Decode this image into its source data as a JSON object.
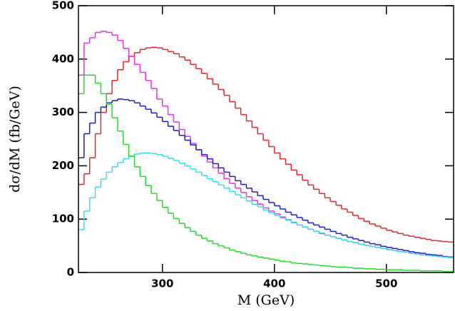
{
  "chart_data": {
    "type": "histogram",
    "xlabel": "M (GeV)",
    "ylabel": "dσ/dM (fb/GeV)",
    "xlim": [
      225,
      560
    ],
    "ylim": [
      0,
      500
    ],
    "xticks": [
      300,
      400,
      500
    ],
    "yticks": [
      0,
      100,
      200,
      300,
      400,
      500
    ],
    "bins": [
      225,
      230,
      235,
      240,
      245,
      250,
      255,
      260,
      265,
      270,
      275,
      280,
      285,
      290,
      295,
      300,
      305,
      310,
      315,
      320,
      325,
      330,
      335,
      340,
      345,
      350,
      355,
      360,
      365,
      370,
      375,
      380,
      385,
      390,
      395,
      400,
      405,
      410,
      415,
      420,
      425,
      430,
      435,
      440,
      445,
      450,
      455,
      460,
      465,
      470,
      475,
      480,
      485,
      490,
      495,
      500,
      505,
      510,
      515,
      520,
      525,
      530,
      535,
      540,
      545,
      550,
      555,
      560
    ],
    "series": [
      {
        "color": "#e8242a",
        "values": [
          165,
          185,
          215,
          260,
          300,
          335,
          360,
          380,
          395,
          405,
          412,
          418,
          421,
          422,
          421,
          418,
          414,
          410,
          404,
          398,
          390,
          382,
          373,
          363,
          353,
          343,
          332,
          320,
          308,
          296,
          284,
          272,
          260,
          248,
          236,
          224,
          213,
          203,
          192,
          183,
          173,
          164,
          156,
          148,
          140,
          133,
          126,
          119,
          113,
          107,
          101,
          96,
          91,
          87,
          83,
          79,
          76,
          73,
          70,
          68,
          66,
          64,
          62,
          60,
          59,
          58,
          57
        ]
      },
      {
        "color": "#ee2cee",
        "values": [
          370,
          430,
          440,
          450,
          452,
          450,
          445,
          435,
          420,
          405,
          390,
          375,
          360,
          345,
          325,
          312,
          296,
          282,
          268,
          255,
          242,
          230,
          218,
          207,
          196,
          186,
          176,
          167,
          158,
          150,
          142,
          135,
          128,
          121,
          115,
          110,
          104,
          99,
          94,
          89,
          85,
          81,
          77,
          73,
          70,
          67,
          64,
          61,
          58,
          56,
          53,
          51,
          49,
          47,
          45,
          43,
          41,
          39,
          38,
          36,
          35,
          33,
          32,
          31,
          30,
          29,
          28
        ]
      },
      {
        "color": "#1c1ccc",
        "values": [
          215,
          260,
          280,
          300,
          310,
          318,
          322,
          325,
          324,
          322,
          318,
          312,
          306,
          299,
          291,
          283,
          274,
          266,
          257,
          248,
          239,
          230,
          221,
          213,
          204,
          196,
          188,
          180,
          172,
          165,
          158,
          151,
          144,
          137,
          131,
          125,
          119,
          113,
          108,
          103,
          98,
          93,
          89,
          85,
          81,
          77,
          73,
          70,
          66,
          63,
          60,
          57,
          54,
          52,
          49,
          47,
          45,
          43,
          41,
          39,
          37,
          36,
          34,
          33,
          32,
          30,
          29
        ]
      },
      {
        "color": "#33e0ee",
        "values": [
          80,
          115,
          140,
          160,
          175,
          188,
          198,
          206,
          213,
          218,
          222,
          224,
          224,
          223,
          221,
          218,
          214,
          210,
          205,
          200,
          194,
          188,
          182,
          176,
          170,
          164,
          158,
          152,
          146,
          140,
          134,
          128,
          123,
          117,
          112,
          107,
          102,
          98,
          93,
          89,
          85,
          81,
          77,
          74,
          70,
          67,
          64,
          61,
          58,
          56,
          53,
          51,
          49,
          47,
          45,
          43,
          41,
          39,
          38,
          36,
          35,
          33,
          32,
          31,
          30,
          29,
          28
        ]
      },
      {
        "color": "#22dd22",
        "values": [
          335,
          370,
          370,
          355,
          335,
          315,
          290,
          265,
          240,
          218,
          198,
          180,
          163,
          148,
          135,
          122,
          111,
          101,
          92,
          84,
          77,
          70,
          64,
          59,
          54,
          50,
          46,
          42,
          39,
          36,
          33,
          31,
          29,
          27,
          25,
          23,
          21,
          20,
          18,
          17,
          16,
          15,
          14,
          13,
          12,
          11,
          10,
          10,
          9,
          8,
          8,
          7,
          7,
          6,
          6,
          5,
          5,
          5,
          4,
          4,
          4,
          3,
          3,
          3,
          3,
          2,
          2
        ]
      }
    ]
  }
}
